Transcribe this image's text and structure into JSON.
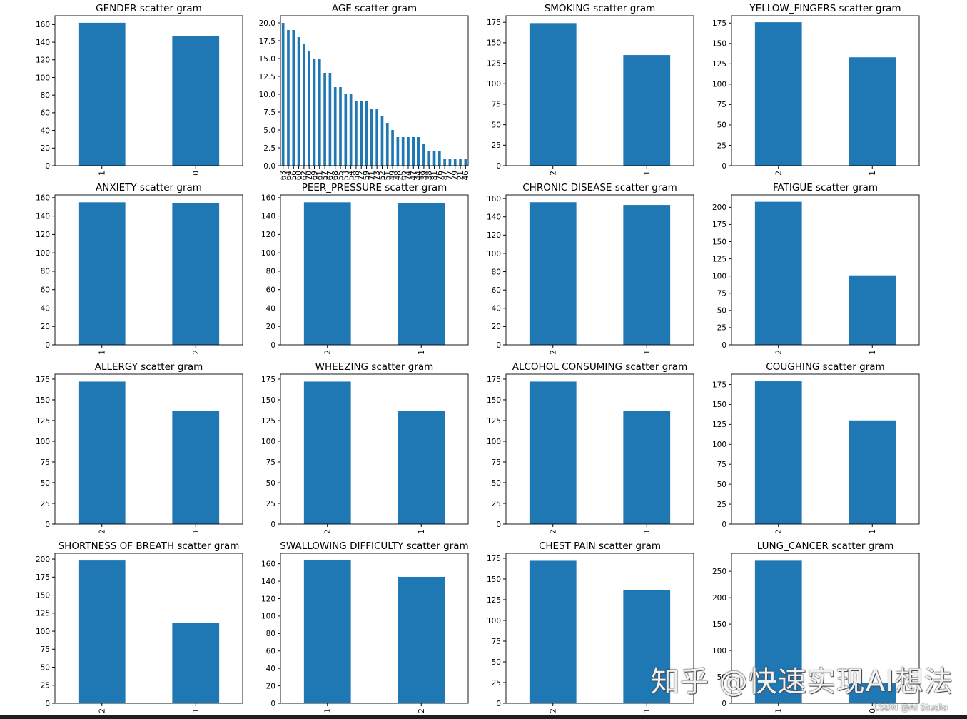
{
  "chart_data": [
    {
      "type": "bar",
      "title": "GENDER scatter gram",
      "categories": [
        "1",
        "0"
      ],
      "values": [
        162,
        147
      ],
      "ylim": [
        0,
        170
      ],
      "yticks": [
        0,
        20,
        40,
        60,
        80,
        100,
        120,
        140,
        160
      ],
      "color": "#1f77b4"
    },
    {
      "type": "bar",
      "title": "AGE scatter gram",
      "categories": [
        "63",
        "64",
        "56",
        "60",
        "62",
        "70",
        "69",
        "61",
        "57",
        "67",
        "68",
        "55",
        "53",
        "54",
        "58",
        "72",
        "59",
        "71",
        "73",
        "52",
        "51",
        "49",
        "48",
        "65",
        "74",
        "47",
        "44",
        "39",
        "38",
        "81",
        "76",
        "87",
        "77",
        "79",
        "21",
        "46"
      ],
      "values": [
        20,
        19,
        19,
        18,
        17,
        16,
        15,
        15,
        13,
        13,
        11,
        11,
        10,
        10,
        9,
        9,
        9,
        8,
        8,
        7,
        6,
        5,
        4,
        4,
        4,
        4,
        4,
        3,
        2,
        2,
        2,
        1,
        1,
        1,
        1,
        1
      ],
      "ylim": [
        0,
        21
      ],
      "yticks": [
        0.0,
        2.5,
        5.0,
        7.5,
        10.0,
        12.5,
        15.0,
        17.5,
        20.0
      ],
      "color": "#1f77b4"
    },
    {
      "type": "bar",
      "title": "SMOKING scatter gram",
      "categories": [
        "2",
        "1"
      ],
      "values": [
        174,
        135
      ],
      "ylim": [
        0,
        183
      ],
      "yticks": [
        0,
        25,
        50,
        75,
        100,
        125,
        150,
        175
      ],
      "color": "#1f77b4"
    },
    {
      "type": "bar",
      "title": "YELLOW_FINGERS scatter gram",
      "categories": [
        "2",
        "1"
      ],
      "values": [
        176,
        133
      ],
      "ylim": [
        0,
        184
      ],
      "yticks": [
        0,
        25,
        50,
        75,
        100,
        125,
        150,
        175
      ],
      "color": "#1f77b4"
    },
    {
      "type": "bar",
      "title": "ANXIETY scatter gram",
      "categories": [
        "1",
        "2"
      ],
      "values": [
        155,
        154
      ],
      "ylim": [
        0,
        163
      ],
      "yticks": [
        0,
        20,
        40,
        60,
        80,
        100,
        120,
        140,
        160
      ],
      "color": "#1f77b4"
    },
    {
      "type": "bar",
      "title": "PEER_PRESSURE scatter gram",
      "categories": [
        "2",
        "1"
      ],
      "values": [
        155,
        154
      ],
      "ylim": [
        0,
        163
      ],
      "yticks": [
        0,
        20,
        40,
        60,
        80,
        100,
        120,
        140,
        160
      ],
      "color": "#1f77b4"
    },
    {
      "type": "bar",
      "title": "CHRONIC DISEASE scatter gram",
      "categories": [
        "2",
        "1"
      ],
      "values": [
        156,
        153
      ],
      "ylim": [
        0,
        164
      ],
      "yticks": [
        0,
        20,
        40,
        60,
        80,
        100,
        120,
        140,
        160
      ],
      "color": "#1f77b4"
    },
    {
      "type": "bar",
      "title": "FATIGUE  scatter gram",
      "categories": [
        "2",
        "1"
      ],
      "values": [
        208,
        101
      ],
      "ylim": [
        0,
        218
      ],
      "yticks": [
        0,
        25,
        50,
        75,
        100,
        125,
        150,
        175,
        200
      ],
      "color": "#1f77b4"
    },
    {
      "type": "bar",
      "title": "ALLERGY  scatter gram",
      "categories": [
        "2",
        "1"
      ],
      "values": [
        172,
        137
      ],
      "ylim": [
        0,
        181
      ],
      "yticks": [
        0,
        25,
        50,
        75,
        100,
        125,
        150,
        175
      ],
      "color": "#1f77b4"
    },
    {
      "type": "bar",
      "title": "WHEEZING scatter gram",
      "categories": [
        "2",
        "1"
      ],
      "values": [
        172,
        137
      ],
      "ylim": [
        0,
        181
      ],
      "yticks": [
        0,
        25,
        50,
        75,
        100,
        125,
        150,
        175
      ],
      "color": "#1f77b4"
    },
    {
      "type": "bar",
      "title": "ALCOHOL CONSUMING scatter gram",
      "categories": [
        "2",
        "1"
      ],
      "values": [
        172,
        137
      ],
      "ylim": [
        0,
        181
      ],
      "yticks": [
        0,
        25,
        50,
        75,
        100,
        125,
        150,
        175
      ],
      "color": "#1f77b4"
    },
    {
      "type": "bar",
      "title": "COUGHING scatter gram",
      "categories": [
        "2",
        "1"
      ],
      "values": [
        179,
        130
      ],
      "ylim": [
        0,
        188
      ],
      "yticks": [
        0,
        25,
        50,
        75,
        100,
        125,
        150,
        175
      ],
      "color": "#1f77b4"
    },
    {
      "type": "bar",
      "title": "SHORTNESS OF BREATH scatter gram",
      "categories": [
        "2",
        "1"
      ],
      "values": [
        198,
        111
      ],
      "ylim": [
        0,
        208
      ],
      "yticks": [
        0,
        25,
        50,
        75,
        100,
        125,
        150,
        175,
        200
      ],
      "color": "#1f77b4"
    },
    {
      "type": "bar",
      "title": "SWALLOWING DIFFICULTY scatter gram",
      "categories": [
        "1",
        "2"
      ],
      "values": [
        164,
        145
      ],
      "ylim": [
        0,
        172
      ],
      "yticks": [
        0,
        20,
        40,
        60,
        80,
        100,
        120,
        140,
        160
      ],
      "color": "#1f77b4"
    },
    {
      "type": "bar",
      "title": "CHEST PAIN scatter gram",
      "categories": [
        "2",
        "1"
      ],
      "values": [
        172,
        137
      ],
      "ylim": [
        0,
        181
      ],
      "yticks": [
        0,
        25,
        50,
        75,
        100,
        125,
        150,
        175
      ],
      "color": "#1f77b4"
    },
    {
      "type": "bar",
      "title": "LUNG_CANCER scatter gram",
      "categories": [
        "1",
        "0"
      ],
      "values": [
        270,
        39
      ],
      "ylim": [
        0,
        284
      ],
      "yticks": [
        0,
        50,
        100,
        150,
        200,
        250
      ],
      "color": "#1f77b4"
    }
  ],
  "watermark": {
    "text": "知乎 @快速实现AI想法",
    "source": "CSDN @AI Studio"
  }
}
